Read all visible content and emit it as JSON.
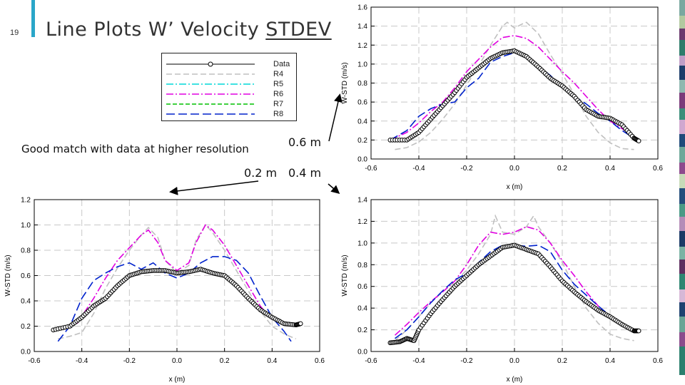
{
  "slide": {
    "number": "19",
    "title_prefix": "Line Plots W’ Velocity ",
    "title_underlined": "STDEV",
    "note": "Good match with data at higher resolution",
    "label_06": "0.6 m",
    "label_02": "0.2 m",
    "label_04": "0.4 m",
    "colors": {
      "accent": "#2aa6c9"
    }
  },
  "legend": [
    {
      "name": "Data",
      "color": "#000000",
      "style": "circle-line"
    },
    {
      "name": "R4",
      "color": "#c0c0c0",
      "style": "dash"
    },
    {
      "name": "R5",
      "color": "#00d8d8",
      "style": "dashdot"
    },
    {
      "name": "R6",
      "color": "#e000e0",
      "style": "dashdot"
    },
    {
      "name": "R7",
      "color": "#00c000",
      "style": "dash"
    },
    {
      "name": "R8",
      "color": "#0022cc",
      "style": "longdash"
    }
  ],
  "chart_data": [
    {
      "type": "line",
      "id": "z06",
      "xlabel": "x (m)",
      "ylabel": "W-STD (m/s)",
      "xlim": [
        -0.6,
        0.6
      ],
      "ylim": [
        0,
        1.6
      ],
      "xticks": [
        "-0.6",
        "-0.4",
        "-0.2",
        "0.0",
        "0.2",
        "0.4",
        "0.6"
      ],
      "yticks": [
        "0.0",
        "0.2",
        "0.4",
        "0.6",
        "0.8",
        "1.0",
        "1.2",
        "1.4",
        "1.6"
      ],
      "grid": true,
      "series": [
        {
          "name": "Data",
          "x": [
            -0.52,
            -0.45,
            -0.4,
            -0.35,
            -0.3,
            -0.25,
            -0.2,
            -0.15,
            -0.1,
            -0.05,
            0.0,
            0.05,
            0.1,
            0.15,
            0.2,
            0.25,
            0.3,
            0.35,
            0.4,
            0.45,
            0.5,
            0.52
          ],
          "y": [
            0.2,
            0.2,
            0.28,
            0.42,
            0.56,
            0.7,
            0.86,
            0.96,
            1.06,
            1.12,
            1.14,
            1.08,
            0.97,
            0.85,
            0.77,
            0.66,
            0.52,
            0.45,
            0.43,
            0.36,
            0.22,
            0.19
          ]
        },
        {
          "name": "R4",
          "x": [
            -0.5,
            -0.45,
            -0.4,
            -0.35,
            -0.3,
            -0.25,
            -0.2,
            -0.15,
            -0.1,
            -0.05,
            -0.03,
            0.0,
            0.03,
            0.05,
            0.1,
            0.15,
            0.2,
            0.25,
            0.3,
            0.35,
            0.4,
            0.45,
            0.5
          ],
          "y": [
            0.1,
            0.12,
            0.18,
            0.28,
            0.42,
            0.58,
            0.78,
            0.98,
            1.2,
            1.4,
            1.44,
            1.38,
            1.42,
            1.44,
            1.32,
            1.1,
            0.9,
            0.68,
            0.45,
            0.28,
            0.17,
            0.11,
            0.1
          ]
        },
        {
          "name": "R6",
          "x": [
            -0.52,
            -0.45,
            -0.4,
            -0.35,
            -0.3,
            -0.25,
            -0.2,
            -0.15,
            -0.1,
            -0.05,
            0.0,
            0.05,
            0.1,
            0.15,
            0.2,
            0.25,
            0.3,
            0.35,
            0.4,
            0.45,
            0.5,
            0.52
          ],
          "y": [
            0.2,
            0.28,
            0.38,
            0.5,
            0.6,
            0.75,
            0.92,
            1.05,
            1.18,
            1.28,
            1.3,
            1.27,
            1.18,
            1.05,
            0.92,
            0.8,
            0.66,
            0.52,
            0.4,
            0.32,
            0.24,
            0.2
          ]
        },
        {
          "name": "R8",
          "x": [
            -0.52,
            -0.45,
            -0.4,
            -0.35,
            -0.3,
            -0.25,
            -0.2,
            -0.15,
            -0.1,
            -0.05,
            0.0,
            0.05,
            0.1,
            0.15,
            0.2,
            0.25,
            0.3,
            0.35,
            0.4,
            0.45,
            0.5,
            0.52
          ],
          "y": [
            0.2,
            0.3,
            0.45,
            0.53,
            0.58,
            0.6,
            0.75,
            0.85,
            1.02,
            1.08,
            1.12,
            1.08,
            0.98,
            0.88,
            0.76,
            0.66,
            0.58,
            0.48,
            0.4,
            0.3,
            0.22,
            0.2
          ]
        }
      ]
    },
    {
      "type": "line",
      "id": "z02",
      "xlabel": "x (m)",
      "ylabel": "W-STD (m/s)",
      "xlim": [
        -0.6,
        0.6
      ],
      "ylim": [
        0,
        1.2
      ],
      "xticks": [
        "-0.6",
        "-0.4",
        "-0.2",
        "0.0",
        "0.2",
        "0.4",
        "0.6"
      ],
      "yticks": [
        "0.0",
        "0.2",
        "0.4",
        "0.6",
        "0.8",
        "1.0",
        "1.2"
      ],
      "grid": true,
      "series": [
        {
          "name": "Data",
          "x": [
            -0.52,
            -0.45,
            -0.4,
            -0.35,
            -0.3,
            -0.25,
            -0.2,
            -0.15,
            -0.1,
            -0.05,
            0.0,
            0.05,
            0.1,
            0.15,
            0.2,
            0.25,
            0.3,
            0.35,
            0.4,
            0.45,
            0.5,
            0.52
          ],
          "y": [
            0.17,
            0.2,
            0.27,
            0.36,
            0.42,
            0.52,
            0.6,
            0.63,
            0.64,
            0.64,
            0.62,
            0.63,
            0.65,
            0.62,
            0.6,
            0.52,
            0.42,
            0.33,
            0.27,
            0.22,
            0.21,
            0.22
          ]
        },
        {
          "name": "R4",
          "x": [
            -0.5,
            -0.45,
            -0.4,
            -0.35,
            -0.3,
            -0.25,
            -0.2,
            -0.15,
            -0.12,
            -0.08,
            -0.05,
            0.0,
            0.05,
            0.08,
            0.12,
            0.15,
            0.2,
            0.25,
            0.3,
            0.35,
            0.4,
            0.45,
            0.5
          ],
          "y": [
            0.1,
            0.12,
            0.15,
            0.3,
            0.5,
            0.66,
            0.8,
            0.92,
            0.98,
            0.9,
            0.72,
            0.62,
            0.68,
            0.88,
            1.0,
            0.94,
            0.8,
            0.64,
            0.48,
            0.32,
            0.2,
            0.14,
            0.1
          ]
        },
        {
          "name": "R6",
          "x": [
            -0.42,
            -0.35,
            -0.3,
            -0.25,
            -0.2,
            -0.15,
            -0.12,
            -0.08,
            -0.05,
            0.0,
            0.05,
            0.08,
            0.12,
            0.15,
            0.2,
            0.25,
            0.3,
            0.35,
            0.4
          ],
          "y": [
            0.22,
            0.42,
            0.58,
            0.72,
            0.82,
            0.92,
            0.96,
            0.86,
            0.72,
            0.64,
            0.7,
            0.86,
            1.0,
            0.96,
            0.84,
            0.68,
            0.52,
            0.36,
            0.25
          ]
        },
        {
          "name": "R8",
          "x": [
            -0.5,
            -0.45,
            -0.4,
            -0.35,
            -0.3,
            -0.25,
            -0.2,
            -0.15,
            -0.1,
            -0.05,
            0.0,
            0.05,
            0.1,
            0.15,
            0.2,
            0.25,
            0.3,
            0.35,
            0.4,
            0.45,
            0.48
          ],
          "y": [
            0.08,
            0.2,
            0.42,
            0.56,
            0.62,
            0.67,
            0.7,
            0.65,
            0.7,
            0.62,
            0.58,
            0.62,
            0.7,
            0.75,
            0.75,
            0.72,
            0.62,
            0.44,
            0.27,
            0.16,
            0.08
          ]
        }
      ]
    },
    {
      "type": "line",
      "id": "z04",
      "xlabel": "x (m)",
      "ylabel": "W-STD (m/s)",
      "xlim": [
        -0.6,
        0.6
      ],
      "ylim": [
        0,
        1.4
      ],
      "xticks": [
        "-0.6",
        "-0.4",
        "-0.2",
        "0.0",
        "0.2",
        "0.4",
        "0.6"
      ],
      "yticks": [
        "0.0",
        "0.2",
        "0.4",
        "0.6",
        "0.8",
        "1.0",
        "1.2",
        "1.4"
      ],
      "grid": true,
      "series": [
        {
          "name": "Data",
          "x": [
            -0.52,
            -0.48,
            -0.45,
            -0.42,
            -0.4,
            -0.35,
            -0.3,
            -0.25,
            -0.2,
            -0.15,
            -0.1,
            -0.05,
            0.0,
            0.05,
            0.1,
            0.15,
            0.2,
            0.25,
            0.3,
            0.35,
            0.4,
            0.45,
            0.5,
            0.52
          ],
          "y": [
            0.08,
            0.09,
            0.12,
            0.1,
            0.2,
            0.35,
            0.48,
            0.6,
            0.7,
            0.8,
            0.88,
            0.96,
            0.98,
            0.94,
            0.9,
            0.78,
            0.65,
            0.55,
            0.46,
            0.38,
            0.32,
            0.25,
            0.19,
            0.19
          ]
        },
        {
          "name": "R4",
          "x": [
            -0.5,
            -0.45,
            -0.4,
            -0.35,
            -0.3,
            -0.25,
            -0.2,
            -0.15,
            -0.1,
            -0.08,
            -0.05,
            0.0,
            0.05,
            0.08,
            0.1,
            0.15,
            0.2,
            0.25,
            0.3,
            0.35,
            0.4,
            0.45,
            0.5
          ],
          "y": [
            0.1,
            0.2,
            0.32,
            0.45,
            0.55,
            0.64,
            0.75,
            0.9,
            1.08,
            1.25,
            1.1,
            1.08,
            1.15,
            1.25,
            1.15,
            1.0,
            0.82,
            0.6,
            0.4,
            0.26,
            0.16,
            0.12,
            0.1
          ]
        },
        {
          "name": "R6",
          "x": [
            -0.5,
            -0.45,
            -0.4,
            -0.35,
            -0.3,
            -0.25,
            -0.2,
            -0.15,
            -0.1,
            -0.05,
            0.0,
            0.05,
            0.1,
            0.15,
            0.2,
            0.25,
            0.3,
            0.35,
            0.4,
            0.45,
            0.5
          ],
          "y": [
            0.15,
            0.25,
            0.36,
            0.46,
            0.55,
            0.65,
            0.8,
            0.98,
            1.1,
            1.08,
            1.1,
            1.15,
            1.12,
            1.0,
            0.84,
            0.7,
            0.55,
            0.42,
            0.32,
            0.24,
            0.18
          ]
        },
        {
          "name": "R8",
          "x": [
            -0.5,
            -0.45,
            -0.4,
            -0.35,
            -0.3,
            -0.25,
            -0.2,
            -0.15,
            -0.1,
            -0.05,
            0.0,
            0.05,
            0.1,
            0.15,
            0.2,
            0.25,
            0.3,
            0.35,
            0.4,
            0.45,
            0.5
          ],
          "y": [
            0.12,
            0.2,
            0.32,
            0.45,
            0.56,
            0.66,
            0.72,
            0.82,
            0.92,
            0.98,
            0.98,
            0.97,
            0.98,
            0.92,
            0.75,
            0.62,
            0.52,
            0.42,
            0.33,
            0.26,
            0.18
          ]
        }
      ]
    }
  ]
}
